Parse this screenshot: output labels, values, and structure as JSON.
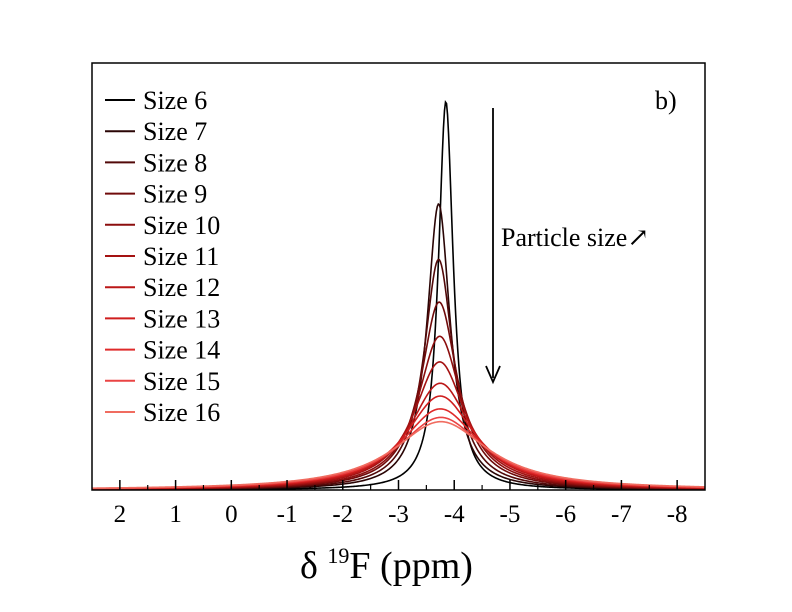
{
  "chart_data": {
    "type": "line",
    "title": "",
    "panel_label": "b)",
    "xlabel": {
      "prefix": "δ ",
      "superscript": "19",
      "suffix": "F (ppm)"
    },
    "ylabel": "",
    "xlim": [
      2.5,
      -8.5
    ],
    "ylim": [
      0,
      1.0
    ],
    "x_ticks": [
      2,
      1,
      0,
      -1,
      -2,
      -3,
      -4,
      -5,
      -6,
      -7,
      -8
    ],
    "x_tick_labels": [
      "2",
      "1",
      "0",
      "-1",
      "-2",
      "-3",
      "-4",
      "-5",
      "-6",
      "-7",
      "-8"
    ],
    "legend_position": "top-left",
    "annotation": {
      "text": "Particle size",
      "arrow": "↗"
    },
    "series": [
      {
        "name": "Size 6",
        "center": -3.85,
        "peak": 0.91,
        "hwhm": 0.16,
        "color": "#000000"
      },
      {
        "name": "Size 7",
        "center": -3.72,
        "peak": 0.67,
        "hwhm": 0.25,
        "color": "#2a0505"
      },
      {
        "name": "Size 8",
        "center": -3.72,
        "peak": 0.54,
        "hwhm": 0.32,
        "color": "#520909"
      },
      {
        "name": "Size 9",
        "center": -3.73,
        "peak": 0.44,
        "hwhm": 0.4,
        "color": "#700b0b"
      },
      {
        "name": "Size 10",
        "center": -3.74,
        "peak": 0.36,
        "hwhm": 0.48,
        "color": "#8c0e0e"
      },
      {
        "name": "Size 11",
        "center": -3.74,
        "peak": 0.3,
        "hwhm": 0.57,
        "color": "#a41212"
      },
      {
        "name": "Size 12",
        "center": -3.75,
        "peak": 0.25,
        "hwhm": 0.67,
        "color": "#bb1717"
      },
      {
        "name": "Size 13",
        "center": -3.75,
        "peak": 0.22,
        "hwhm": 0.76,
        "color": "#cf1e1e"
      },
      {
        "name": "Size 14",
        "center": -3.75,
        "peak": 0.19,
        "hwhm": 0.86,
        "color": "#df2a2a"
      },
      {
        "name": "Size 15",
        "center": -3.76,
        "peak": 0.17,
        "hwhm": 0.95,
        "color": "#ea4444"
      },
      {
        "name": "Size 16",
        "center": -3.76,
        "peak": 0.16,
        "hwhm": 1.04,
        "color": "#f06c60"
      }
    ]
  }
}
